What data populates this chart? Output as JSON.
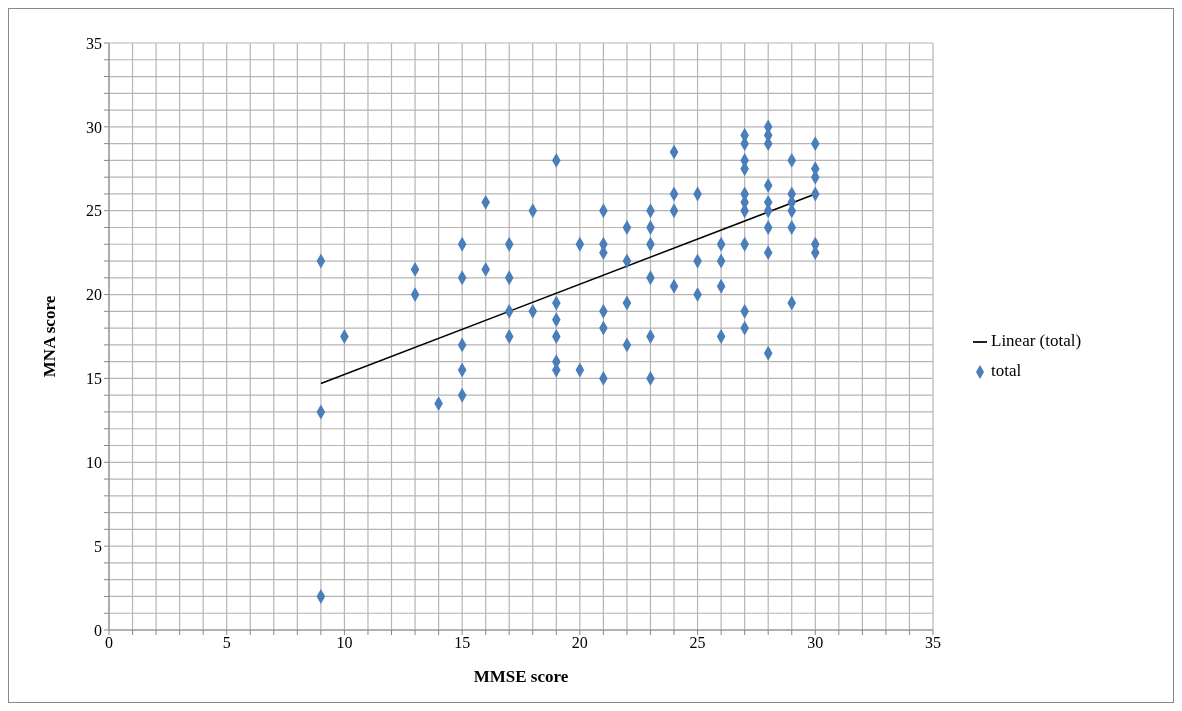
{
  "chart_data": {
    "type": "scatter",
    "xlabel": "MMSE score",
    "ylabel": "MNA score",
    "xlim": [
      0,
      35
    ],
    "ylim": [
      0,
      35
    ],
    "xticks": [
      0,
      {
        "value": 1,
        "label": null
      },
      {
        "value": 2,
        "label": null
      },
      {
        "value": 3,
        "label": null
      },
      {
        "value": 4,
        "label": null
      },
      5,
      {
        "value": 6,
        "label": null
      },
      {
        "value": 7,
        "label": null
      },
      {
        "value": 8,
        "label": null
      },
      {
        "value": 9,
        "label": null
      },
      10,
      {
        "value": 11,
        "label": null
      },
      {
        "value": 12,
        "label": null
      },
      {
        "value": 13,
        "label": null
      },
      {
        "value": 14,
        "label": null
      },
      15,
      {
        "value": 16,
        "label": null
      },
      {
        "value": 17,
        "label": null
      },
      {
        "value": 18,
        "label": null
      },
      {
        "value": 19,
        "label": null
      },
      20,
      {
        "value": 21,
        "label": null
      },
      {
        "value": 22,
        "label": null
      },
      {
        "value": 23,
        "label": null
      },
      {
        "value": 24,
        "label": null
      },
      25,
      {
        "value": 26,
        "label": null
      },
      {
        "value": 27,
        "label": null
      },
      {
        "value": 28,
        "label": null
      },
      {
        "value": 29,
        "label": null
      },
      30,
      {
        "value": 31,
        "label": null
      },
      {
        "value": 32,
        "label": null
      },
      {
        "value": 33,
        "label": null
      },
      {
        "value": 34,
        "label": null
      },
      35
    ],
    "yticks": [
      0,
      {
        "value": 1,
        "label": null
      },
      {
        "value": 2,
        "label": null
      },
      {
        "value": 3,
        "label": null
      },
      {
        "value": 4,
        "label": null
      },
      5,
      {
        "value": 6,
        "label": null
      },
      {
        "value": 7,
        "label": null
      },
      {
        "value": 8,
        "label": null
      },
      {
        "value": 9,
        "label": null
      },
      10,
      {
        "value": 11,
        "label": null
      },
      {
        "value": 12,
        "label": null
      },
      {
        "value": 13,
        "label": null
      },
      {
        "value": 14,
        "label": null
      },
      15,
      {
        "value": 16,
        "label": null
      },
      {
        "value": 17,
        "label": null
      },
      {
        "value": 18,
        "label": null
      },
      {
        "value": 19,
        "label": null
      },
      20,
      {
        "value": 21,
        "label": null
      },
      {
        "value": 22,
        "label": null
      },
      {
        "value": 23,
        "label": null
      },
      {
        "value": 24,
        "label": null
      },
      25,
      {
        "value": 26,
        "label": null
      },
      {
        "value": 27,
        "label": null
      },
      {
        "value": 28,
        "label": null
      },
      {
        "value": 29,
        "label": null
      },
      30,
      {
        "value": 31,
        "label": null
      },
      {
        "value": 32,
        "label": null
      },
      {
        "value": 33,
        "label": null
      },
      {
        "value": 34,
        "label": null
      },
      35
    ],
    "grid": true,
    "legend": "right",
    "series": [
      {
        "name": "total",
        "marker": "diamond",
        "color": "#4a7ebb",
        "x": [
          9,
          9,
          9,
          10,
          13,
          13,
          14,
          15,
          15,
          15,
          15,
          15,
          16,
          16,
          17,
          17,
          17,
          17,
          18,
          18,
          19,
          19,
          19,
          19,
          19,
          19,
          20,
          20,
          21,
          21,
          21,
          21,
          21,
          21,
          22,
          22,
          22,
          22,
          23,
          23,
          23,
          23,
          23,
          23,
          24,
          24,
          24,
          24,
          25,
          25,
          25,
          26,
          26,
          26,
          26,
          27,
          27,
          27,
          27,
          27,
          27,
          27,
          27,
          27,
          27,
          28,
          28,
          28,
          28,
          28,
          28,
          28,
          28,
          28,
          29,
          29,
          29,
          29,
          29,
          29,
          30,
          30,
          30,
          30,
          30,
          30
        ],
        "values": [
          22,
          13,
          2,
          17.5,
          21.5,
          20,
          13.5,
          23,
          21,
          17,
          15.5,
          14,
          25.5,
          21.5,
          23,
          21,
          19,
          17.5,
          25,
          19,
          28,
          19.5,
          18.5,
          17.5,
          16,
          15.5,
          23,
          15.5,
          25,
          23,
          22.5,
          19,
          18,
          15,
          24,
          22,
          19.5,
          17,
          25,
          24,
          23,
          21,
          17.5,
          15,
          28.5,
          26,
          25,
          20.5,
          26,
          22,
          20,
          23,
          22,
          20.5,
          17.5,
          29.5,
          29,
          28,
          27.5,
          26,
          25.5,
          25,
          23,
          19,
          18,
          30,
          29.5,
          29,
          26.5,
          25.5,
          25,
          24,
          22.5,
          16.5,
          28,
          26,
          25.5,
          25,
          24,
          19.5,
          29,
          27.5,
          27,
          26,
          23,
          22.5
        ]
      },
      {
        "name": "Linear (total)",
        "type": "line",
        "marker": "none",
        "color": "#000000",
        "x": [
          9,
          30
        ],
        "values": [
          14.7,
          26
        ]
      }
    ]
  }
}
